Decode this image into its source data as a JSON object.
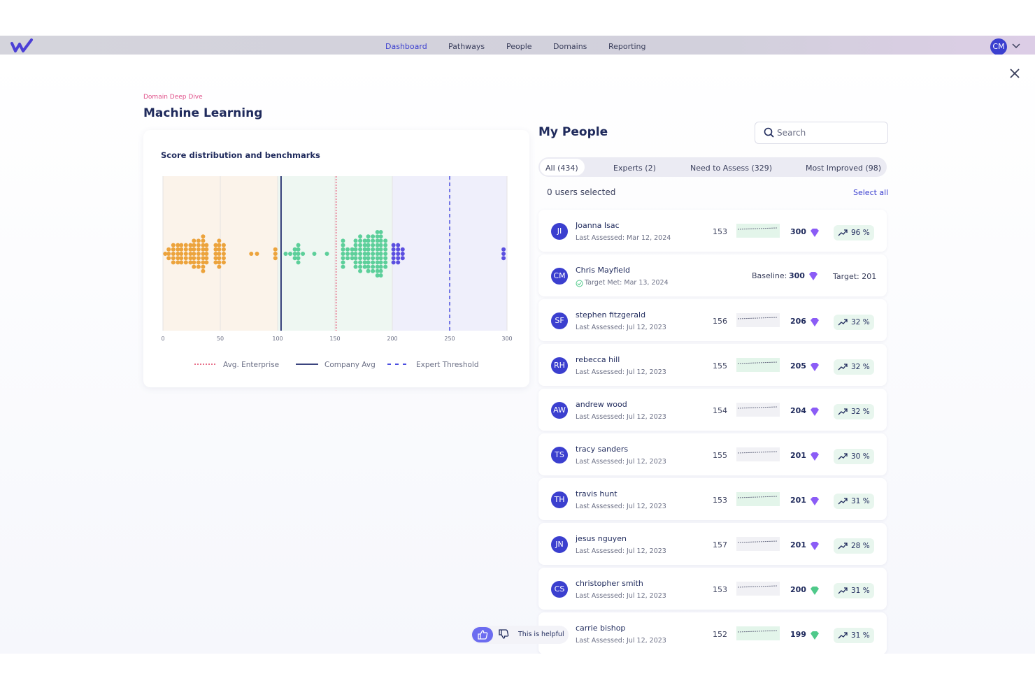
{
  "nav": {
    "items": [
      "Dashboard",
      "Pathways",
      "People",
      "Domains",
      "Reporting"
    ],
    "user_initials": "CM"
  },
  "header": {
    "eyebrow": "Domain Deep Dive",
    "title": "Machine Learning"
  },
  "chart_data": {
    "type": "beeswarm",
    "title": "Score distribution and benchmarks",
    "xlim": [
      0,
      300
    ],
    "xticks": [
      0,
      50,
      100,
      150,
      200,
      250,
      300
    ],
    "grid": true,
    "bands": [
      {
        "from": 0,
        "to": 100,
        "color": "#fbf3ea"
      },
      {
        "from": 100,
        "to": 200,
        "color": "#eef7f2"
      },
      {
        "from": 200,
        "to": 300,
        "color": "#efeffb"
      }
    ],
    "series": [
      {
        "color": "#eca33c",
        "values": [
          2,
          5,
          9,
          13,
          16,
          20,
          24,
          27,
          31,
          35,
          38,
          46,
          49,
          53,
          77,
          82,
          98
        ],
        "counts": [
          1,
          3,
          5,
          5,
          5,
          5,
          5,
          7,
          7,
          9,
          5,
          5,
          7,
          5,
          1,
          1,
          3
        ]
      },
      {
        "color": "#5ccf9a",
        "values": [
          107,
          111,
          115,
          118,
          122,
          132,
          143,
          157,
          161,
          165,
          168,
          172,
          176,
          179,
          183,
          187,
          190,
          194
        ],
        "counts": [
          1,
          1,
          3,
          5,
          1,
          1,
          1,
          7,
          3,
          3,
          7,
          9,
          7,
          9,
          9,
          11,
          11,
          7
        ]
      },
      {
        "color": "#5b4fe0",
        "values": [
          201,
          205,
          209,
          297
        ],
        "counts": [
          5,
          5,
          3,
          3
        ]
      }
    ],
    "reference_lines": [
      {
        "name": "Avg. Enterprise",
        "value": 151,
        "style": "dotted",
        "color": "#e8708a"
      },
      {
        "name": "Company Avg",
        "value": 103,
        "style": "solid",
        "color": "#1f2a6b"
      },
      {
        "name": "Expert Threshold",
        "value": 250,
        "style": "dashed",
        "color": "#4a4ee0"
      }
    ]
  },
  "people_panel": {
    "title": "My People",
    "search_placeholder": "Search",
    "tabs": [
      "All (434)",
      "Experts (2)",
      "Need to Assess (329)",
      "Most Improved (98)"
    ],
    "selected": "0 users selected",
    "select_all": "Select all",
    "people": [
      {
        "initials": "JI",
        "name": "Joanna Isac",
        "status": "Last Assessed: Mar 12, 2024",
        "baseline": 153,
        "score": 300,
        "gem": "#8b5cf6",
        "improvement": "96 %"
      },
      {
        "initials": "CM",
        "name": "Chris Mayfield",
        "status": "Target Met: Mar 13, 2024",
        "baseline_label": "Baseline:",
        "score": 300,
        "gem": "#8b5cf6",
        "target": "Target: 201"
      },
      {
        "initials": "SF",
        "name": "stephen fitzgerald",
        "status": "Last Assessed: Jul 12, 2023",
        "baseline": 156,
        "score": 206,
        "gem": "#8b5cf6",
        "improvement": "32 %"
      },
      {
        "initials": "RH",
        "name": "rebecca hill",
        "status": "Last Assessed: Jul 12, 2023",
        "baseline": 155,
        "score": 205,
        "gem": "#8b5cf6",
        "improvement": "32 %"
      },
      {
        "initials": "AW",
        "name": "andrew wood",
        "status": "Last Assessed: Jul 12, 2023",
        "baseline": 154,
        "score": 204,
        "gem": "#8b5cf6",
        "improvement": "32 %"
      },
      {
        "initials": "TS",
        "name": "tracy sanders",
        "status": "Last Assessed: Jul 12, 2023",
        "baseline": 155,
        "score": 201,
        "gem": "#8b5cf6",
        "improvement": "30 %"
      },
      {
        "initials": "TH",
        "name": "travis hunt",
        "status": "Last Assessed: Jul 12, 2023",
        "baseline": 153,
        "score": 201,
        "gem": "#8b5cf6",
        "improvement": "31 %"
      },
      {
        "initials": "JN",
        "name": "jesus nguyen",
        "status": "Last Assessed: Jul 12, 2023",
        "baseline": 157,
        "score": 201,
        "gem": "#8b5cf6",
        "improvement": "28 %"
      },
      {
        "initials": "CS",
        "name": "christopher smith",
        "status": "Last Assessed: Jul 12, 2023",
        "baseline": 153,
        "score": 200,
        "gem": "#4fc98a",
        "improvement": "31 %"
      },
      {
        "name": "carrie bishop",
        "status": "Last Assessed: Jul 12, 2023",
        "baseline": 152,
        "score": 199,
        "gem": "#4fc98a",
        "improvement": "31 %"
      }
    ]
  },
  "feedback": {
    "label": "This is helpful"
  }
}
